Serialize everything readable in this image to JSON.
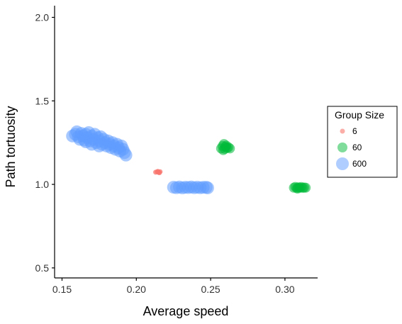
{
  "chart_data": {
    "type": "scatter",
    "title": "",
    "xlabel": "Average speed",
    "ylabel": "Path tortuosity",
    "xlim": [
      0.145,
      0.322
    ],
    "ylim": [
      0.44,
      2.07
    ],
    "xticks": [
      0.15,
      0.2,
      0.25,
      0.3
    ],
    "xtick_labels": [
      "0.15",
      "0.20",
      "0.25",
      "0.30"
    ],
    "yticks": [
      0.5,
      1.0,
      1.5,
      2.0
    ],
    "ytick_labels": [
      "0.5",
      "1.0",
      "1.5",
      "2.0"
    ],
    "grid": false,
    "legend": {
      "title": "Group Size",
      "placement": "right",
      "entries": [
        {
          "label": "6",
          "color": "#f8766d"
        },
        {
          "label": "60",
          "color": "#00ba38"
        },
        {
          "label": "600",
          "color": "#619cff"
        }
      ]
    },
    "series": [
      {
        "name": "6",
        "color": "#f8766d",
        "points": [
          [
            0.213,
            1.073
          ],
          [
            0.214,
            1.075
          ],
          [
            0.215,
            1.072
          ],
          [
            0.216,
            1.076
          ],
          [
            0.2145,
            1.078
          ],
          [
            0.2155,
            1.07
          ]
        ]
      },
      {
        "name": "60",
        "color": "#00ba38",
        "points": [
          [
            0.257,
            1.215
          ],
          [
            0.258,
            1.23
          ],
          [
            0.259,
            1.242
          ],
          [
            0.26,
            1.225
          ],
          [
            0.261,
            1.218
          ],
          [
            0.262,
            1.222
          ],
          [
            0.263,
            1.215
          ],
          [
            0.2585,
            1.205
          ],
          [
            0.2595,
            1.212
          ],
          [
            0.2605,
            1.232
          ],
          [
            0.306,
            0.98
          ],
          [
            0.307,
            0.985
          ],
          [
            0.308,
            0.978
          ],
          [
            0.309,
            0.982
          ],
          [
            0.31,
            0.98
          ],
          [
            0.311,
            0.984
          ],
          [
            0.312,
            0.979
          ],
          [
            0.313,
            0.981
          ],
          [
            0.314,
            0.98
          ],
          [
            0.3085,
            0.975
          ]
        ]
      },
      {
        "name": "600",
        "color": "#619cff",
        "points": [
          [
            0.225,
            0.983
          ],
          [
            0.227,
            0.98
          ],
          [
            0.229,
            0.984
          ],
          [
            0.231,
            0.979
          ],
          [
            0.233,
            0.983
          ],
          [
            0.235,
            0.981
          ],
          [
            0.237,
            0.984
          ],
          [
            0.239,
            0.98
          ],
          [
            0.241,
            0.983
          ],
          [
            0.243,
            0.98
          ],
          [
            0.245,
            0.982
          ],
          [
            0.247,
            0.983
          ],
          [
            0.248,
            0.979
          ],
          [
            0.157,
            1.29
          ],
          [
            0.159,
            1.3
          ],
          [
            0.16,
            1.315
          ],
          [
            0.161,
            1.285
          ],
          [
            0.162,
            1.27
          ],
          [
            0.163,
            1.305
          ],
          [
            0.164,
            1.29
          ],
          [
            0.165,
            1.265
          ],
          [
            0.166,
            1.3
          ],
          [
            0.167,
            1.28
          ],
          [
            0.168,
            1.31
          ],
          [
            0.169,
            1.26
          ],
          [
            0.17,
            1.29
          ],
          [
            0.171,
            1.27
          ],
          [
            0.172,
            1.3
          ],
          [
            0.173,
            1.25
          ],
          [
            0.174,
            1.28
          ],
          [
            0.175,
            1.26
          ],
          [
            0.176,
            1.285
          ],
          [
            0.177,
            1.24
          ],
          [
            0.178,
            1.27
          ],
          [
            0.179,
            1.25
          ],
          [
            0.18,
            1.23
          ],
          [
            0.181,
            1.26
          ],
          [
            0.182,
            1.24
          ],
          [
            0.183,
            1.22
          ],
          [
            0.184,
            1.25
          ],
          [
            0.185,
            1.23
          ],
          [
            0.186,
            1.21
          ],
          [
            0.187,
            1.24
          ],
          [
            0.188,
            1.22
          ],
          [
            0.189,
            1.2
          ],
          [
            0.19,
            1.23
          ],
          [
            0.191,
            1.21
          ],
          [
            0.192,
            1.19
          ],
          [
            0.193,
            1.175
          ],
          [
            0.166,
            1.255
          ],
          [
            0.17,
            1.24
          ],
          [
            0.175,
            1.23
          ]
        ]
      }
    ]
  }
}
